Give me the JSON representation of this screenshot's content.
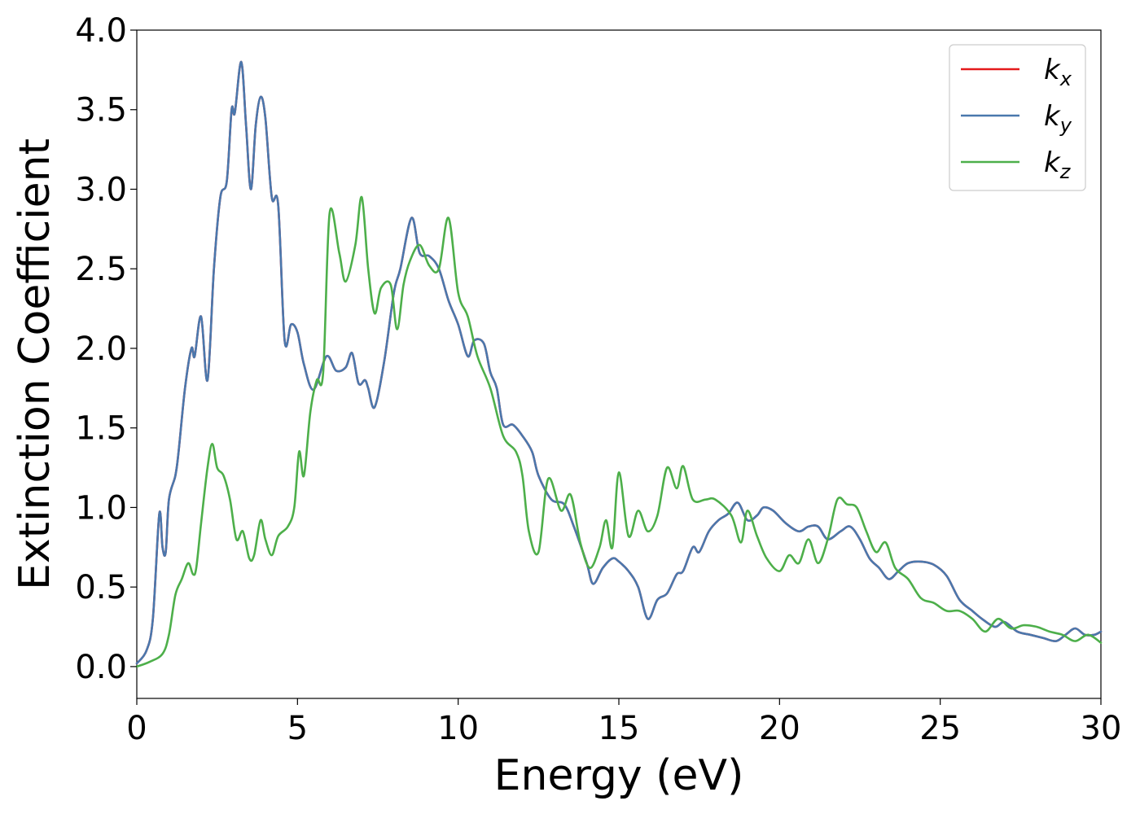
{
  "chart_data": {
    "type": "line",
    "title": "",
    "xlabel": "Energy (eV)",
    "ylabel": "Extinction Coefficient",
    "xlim": [
      0,
      30
    ],
    "ylim": [
      -0.2,
      4.0
    ],
    "xticks": [
      0,
      5,
      10,
      15,
      20,
      25,
      30
    ],
    "xtick_labels": [
      "0",
      "5",
      "10",
      "15",
      "20",
      "25",
      "30"
    ],
    "yticks": [
      0.0,
      0.5,
      1.0,
      1.5,
      2.0,
      2.5,
      3.0,
      3.5,
      4.0
    ],
    "ytick_labels": [
      "0.0",
      "0.5",
      "1.0",
      "1.5",
      "2.0",
      "2.5",
      "3.0",
      "3.5",
      "4.0"
    ],
    "grid": false,
    "legend_position": "top-right",
    "series": [
      {
        "name": "k_x",
        "label_main": "k",
        "label_sub": "x",
        "color": "#e41a1c",
        "x": [
          0,
          0.3,
          0.5,
          0.7,
          0.8,
          0.9,
          1.0,
          1.2,
          1.3,
          1.5,
          1.7,
          1.8,
          2.0,
          2.2,
          2.4,
          2.6,
          2.8,
          2.95,
          3.05,
          3.25,
          3.4,
          3.55,
          3.7,
          3.85,
          4.0,
          4.2,
          4.4,
          4.6,
          4.8,
          5.0,
          5.2,
          5.5,
          5.9,
          6.2,
          6.5,
          6.7,
          6.9,
          7.1,
          7.2,
          7.4,
          7.7,
          8.0,
          8.2,
          8.55,
          8.8,
          9.1,
          9.4,
          9.7,
          10.0,
          10.3,
          10.5,
          10.8,
          11.0,
          11.2,
          11.4,
          11.7,
          12.0,
          12.3,
          12.5,
          12.9,
          13.3,
          13.6,
          14.0,
          14.2,
          14.5,
          14.8,
          15.0,
          15.3,
          15.6,
          15.9,
          16.2,
          16.5,
          16.8,
          17.0,
          17.3,
          17.5,
          17.8,
          18.1,
          18.4,
          18.7,
          19.0,
          19.3,
          19.5,
          19.8,
          20.2,
          20.6,
          20.9,
          21.2,
          21.5,
          21.9,
          22.2,
          22.5,
          22.8,
          23.1,
          23.4,
          23.7,
          24.0,
          24.4,
          24.8,
          25.2,
          25.6,
          26.0,
          26.3,
          26.7,
          27.0,
          27.4,
          27.8,
          28.2,
          28.6,
          28.9,
          29.2,
          29.5,
          29.8,
          30.0
        ],
        "y": [
          0.02,
          0.1,
          0.3,
          0.96,
          0.75,
          0.72,
          1.05,
          1.2,
          1.35,
          1.75,
          2.0,
          1.95,
          2.2,
          1.8,
          2.5,
          2.95,
          3.05,
          3.5,
          3.48,
          3.8,
          3.4,
          3.0,
          3.4,
          3.58,
          3.45,
          2.95,
          2.9,
          2.05,
          2.15,
          2.1,
          1.9,
          1.74,
          1.95,
          1.86,
          1.88,
          1.97,
          1.78,
          1.8,
          1.75,
          1.63,
          1.92,
          2.35,
          2.5,
          2.82,
          2.6,
          2.58,
          2.5,
          2.3,
          2.15,
          1.95,
          2.05,
          2.03,
          1.85,
          1.75,
          1.52,
          1.52,
          1.45,
          1.35,
          1.2,
          1.05,
          1.02,
          0.88,
          0.65,
          0.52,
          0.62,
          0.68,
          0.66,
          0.6,
          0.5,
          0.3,
          0.42,
          0.46,
          0.58,
          0.6,
          0.75,
          0.72,
          0.85,
          0.92,
          0.96,
          1.03,
          0.92,
          0.95,
          1.0,
          0.98,
          0.9,
          0.85,
          0.88,
          0.88,
          0.8,
          0.85,
          0.88,
          0.8,
          0.68,
          0.62,
          0.55,
          0.6,
          0.65,
          0.66,
          0.64,
          0.57,
          0.42,
          0.35,
          0.3,
          0.25,
          0.28,
          0.22,
          0.2,
          0.18,
          0.16,
          0.2,
          0.24,
          0.2,
          0.2,
          0.22
        ]
      },
      {
        "name": "k_y",
        "label_main": "k",
        "label_sub": "y",
        "color": "#4a78ad",
        "x": [
          0,
          0.3,
          0.5,
          0.7,
          0.8,
          0.9,
          1.0,
          1.2,
          1.3,
          1.5,
          1.7,
          1.8,
          2.0,
          2.2,
          2.4,
          2.6,
          2.8,
          2.95,
          3.05,
          3.25,
          3.4,
          3.55,
          3.7,
          3.85,
          4.0,
          4.2,
          4.4,
          4.6,
          4.8,
          5.0,
          5.2,
          5.5,
          5.9,
          6.2,
          6.5,
          6.7,
          6.9,
          7.1,
          7.2,
          7.4,
          7.7,
          8.0,
          8.2,
          8.55,
          8.8,
          9.1,
          9.4,
          9.7,
          10.0,
          10.3,
          10.5,
          10.8,
          11.0,
          11.2,
          11.4,
          11.7,
          12.0,
          12.3,
          12.5,
          12.9,
          13.3,
          13.6,
          14.0,
          14.2,
          14.5,
          14.8,
          15.0,
          15.3,
          15.6,
          15.9,
          16.2,
          16.5,
          16.8,
          17.0,
          17.3,
          17.5,
          17.8,
          18.1,
          18.4,
          18.7,
          19.0,
          19.3,
          19.5,
          19.8,
          20.2,
          20.6,
          20.9,
          21.2,
          21.5,
          21.9,
          22.2,
          22.5,
          22.8,
          23.1,
          23.4,
          23.7,
          24.0,
          24.4,
          24.8,
          25.2,
          25.6,
          26.0,
          26.3,
          26.7,
          27.0,
          27.4,
          27.8,
          28.2,
          28.6,
          28.9,
          29.2,
          29.5,
          29.8,
          30.0
        ],
        "y": [
          0.02,
          0.1,
          0.3,
          0.96,
          0.75,
          0.72,
          1.05,
          1.2,
          1.35,
          1.75,
          2.0,
          1.95,
          2.2,
          1.8,
          2.5,
          2.95,
          3.05,
          3.5,
          3.48,
          3.8,
          3.4,
          3.0,
          3.4,
          3.58,
          3.45,
          2.95,
          2.9,
          2.05,
          2.15,
          2.1,
          1.9,
          1.74,
          1.95,
          1.86,
          1.88,
          1.97,
          1.78,
          1.8,
          1.75,
          1.63,
          1.92,
          2.35,
          2.5,
          2.82,
          2.6,
          2.58,
          2.5,
          2.3,
          2.15,
          1.95,
          2.05,
          2.03,
          1.85,
          1.75,
          1.52,
          1.52,
          1.45,
          1.35,
          1.2,
          1.05,
          1.02,
          0.88,
          0.65,
          0.52,
          0.62,
          0.68,
          0.66,
          0.6,
          0.5,
          0.3,
          0.42,
          0.46,
          0.58,
          0.6,
          0.75,
          0.72,
          0.85,
          0.92,
          0.96,
          1.03,
          0.92,
          0.95,
          1.0,
          0.98,
          0.9,
          0.85,
          0.88,
          0.88,
          0.8,
          0.85,
          0.88,
          0.8,
          0.68,
          0.62,
          0.55,
          0.6,
          0.65,
          0.66,
          0.64,
          0.57,
          0.42,
          0.35,
          0.3,
          0.25,
          0.28,
          0.22,
          0.2,
          0.18,
          0.16,
          0.2,
          0.24,
          0.2,
          0.2,
          0.22
        ]
      },
      {
        "name": "k_z",
        "label_main": "k",
        "label_sub": "z",
        "color": "#4daf4a",
        "x": [
          0,
          0.4,
          0.8,
          1.0,
          1.2,
          1.4,
          1.6,
          1.75,
          1.85,
          2.0,
          2.2,
          2.35,
          2.5,
          2.7,
          2.9,
          3.1,
          3.3,
          3.5,
          3.65,
          3.85,
          4.0,
          4.2,
          4.4,
          4.7,
          4.9,
          5.05,
          5.2,
          5.4,
          5.6,
          5.8,
          6.0,
          6.3,
          6.5,
          6.8,
          7.0,
          7.2,
          7.4,
          7.6,
          7.9,
          8.1,
          8.3,
          8.5,
          8.8,
          9.1,
          9.4,
          9.7,
          10.0,
          10.3,
          10.6,
          11.0,
          11.4,
          11.8,
          12.0,
          12.2,
          12.5,
          12.8,
          13.2,
          13.5,
          13.8,
          14.1,
          14.4,
          14.6,
          14.8,
          15.0,
          15.3,
          15.6,
          15.9,
          16.2,
          16.5,
          16.8,
          17.0,
          17.3,
          17.7,
          18.0,
          18.5,
          18.8,
          19.0,
          19.3,
          19.6,
          20.0,
          20.3,
          20.6,
          20.9,
          21.2,
          21.5,
          21.8,
          22.1,
          22.4,
          22.7,
          23.0,
          23.3,
          23.6,
          24.0,
          24.4,
          24.8,
          25.2,
          25.6,
          26.0,
          26.4,
          26.8,
          27.2,
          27.6,
          28.0,
          28.4,
          28.8,
          29.2,
          29.6,
          30.0
        ],
        "y": [
          0.0,
          0.03,
          0.08,
          0.2,
          0.45,
          0.55,
          0.65,
          0.58,
          0.62,
          0.9,
          1.25,
          1.4,
          1.25,
          1.2,
          1.05,
          0.8,
          0.85,
          0.68,
          0.7,
          0.92,
          0.8,
          0.7,
          0.82,
          0.88,
          1.0,
          1.35,
          1.2,
          1.6,
          1.8,
          1.85,
          2.85,
          2.6,
          2.42,
          2.65,
          2.95,
          2.5,
          2.22,
          2.38,
          2.4,
          2.12,
          2.4,
          2.55,
          2.65,
          2.52,
          2.5,
          2.82,
          2.35,
          2.2,
          1.95,
          1.75,
          1.45,
          1.35,
          1.2,
          0.85,
          0.72,
          1.18,
          0.98,
          1.08,
          0.78,
          0.62,
          0.75,
          0.92,
          0.75,
          1.22,
          0.82,
          0.98,
          0.85,
          0.95,
          1.25,
          1.12,
          1.26,
          1.05,
          1.05,
          1.05,
          0.95,
          0.78,
          0.98,
          0.82,
          0.68,
          0.6,
          0.7,
          0.65,
          0.8,
          0.65,
          0.8,
          1.05,
          1.02,
          1.0,
          0.85,
          0.72,
          0.78,
          0.62,
          0.55,
          0.43,
          0.4,
          0.35,
          0.35,
          0.3,
          0.22,
          0.3,
          0.24,
          0.26,
          0.25,
          0.22,
          0.2,
          0.16,
          0.2,
          0.15
        ]
      }
    ]
  }
}
